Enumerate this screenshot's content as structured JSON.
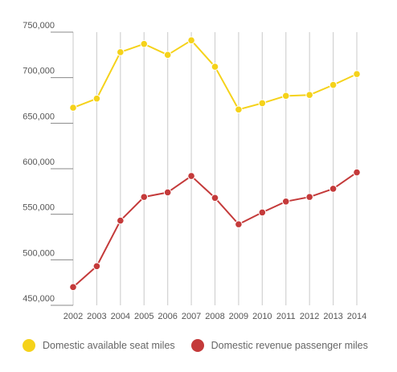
{
  "chart_data": {
    "type": "line",
    "title": "",
    "xlabel": "",
    "ylabel": "",
    "categories": [
      "2002",
      "2003",
      "2004",
      "2005",
      "2006",
      "2007",
      "2008",
      "2009",
      "2010",
      "2011",
      "2012",
      "2013",
      "2014"
    ],
    "ylim": [
      450000,
      750000
    ],
    "yticks": [
      450000,
      500000,
      550000,
      600000,
      650000,
      700000,
      750000
    ],
    "ytick_labels": [
      "450,000",
      "500,000",
      "550,000",
      "600,000",
      "650,000",
      "700,000",
      "750,000"
    ],
    "grid": "vertical",
    "legend_position": "bottom",
    "series": [
      {
        "name": "Domestic available seat miles",
        "color": "#f5d21a",
        "values": [
          667000,
          677000,
          728000,
          737000,
          725000,
          741000,
          712000,
          665000,
          672000,
          680000,
          681000,
          692000,
          704000
        ]
      },
      {
        "name": "Domestic revenue passenger miles",
        "color": "#c43a3a",
        "values": [
          470000,
          493000,
          543000,
          569000,
          574000,
          592000,
          568000,
          539000,
          552000,
          564000,
          569000,
          578000,
          596000
        ]
      }
    ]
  }
}
